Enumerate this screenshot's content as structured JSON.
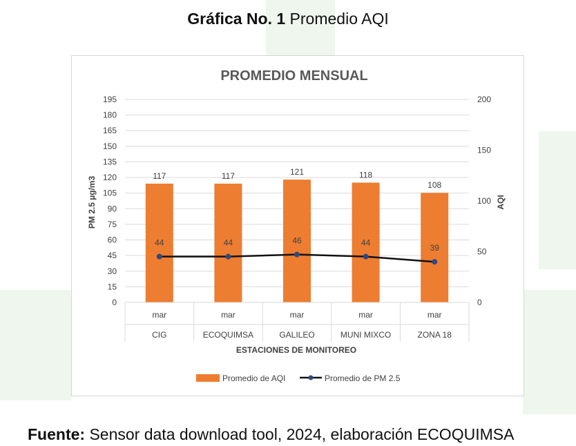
{
  "heading": {
    "bold": "Gráfica No. 1",
    "rest": " Promedio AQI"
  },
  "footer": {
    "bold": "Fuente:",
    "rest": " Sensor data download tool, 2024, elaboración ECOQUIMSA"
  },
  "chart_data": {
    "type": "bar",
    "title": "PROMEDIO MENSUAL",
    "xlabel": "ESTACIONES DE MONITOREO",
    "ylabel_left": "PM 2.5 µg/m3",
    "ylabel_right": "AQI",
    "categories": [
      "CIG",
      "ECOQUIMSA",
      "GALILEO",
      "MUNI MIXCO",
      "ZONA 18"
    ],
    "sub_categories": [
      "mar",
      "mar",
      "mar",
      "mar",
      "mar"
    ],
    "left_axis": {
      "min": 0,
      "max": 195,
      "ticks": [
        "0",
        "15",
        "30",
        "45",
        "60",
        "75",
        "90",
        "105",
        "120",
        "135",
        "150",
        "165",
        "180",
        "195"
      ]
    },
    "right_axis": {
      "min": 0,
      "max": 200,
      "ticks": [
        "0",
        "50",
        "100",
        "150",
        "200"
      ]
    },
    "series": [
      {
        "name": "Promedio de AQI",
        "kind": "bar",
        "axis": "right",
        "color": "#ed7d31",
        "values": [
          117,
          117,
          121,
          118,
          108
        ],
        "labels": [
          "117",
          "117",
          "121",
          "118",
          "108"
        ]
      },
      {
        "name": "Promedio de PM 2.5",
        "kind": "line",
        "axis": "left",
        "color": "#111111",
        "marker_color": "#2f4a7d",
        "values": [
          44,
          44,
          46,
          44,
          39
        ],
        "labels": [
          "44",
          "44",
          "46",
          "44",
          "39"
        ]
      }
    ],
    "grid": true,
    "legend_position": "bottom"
  }
}
